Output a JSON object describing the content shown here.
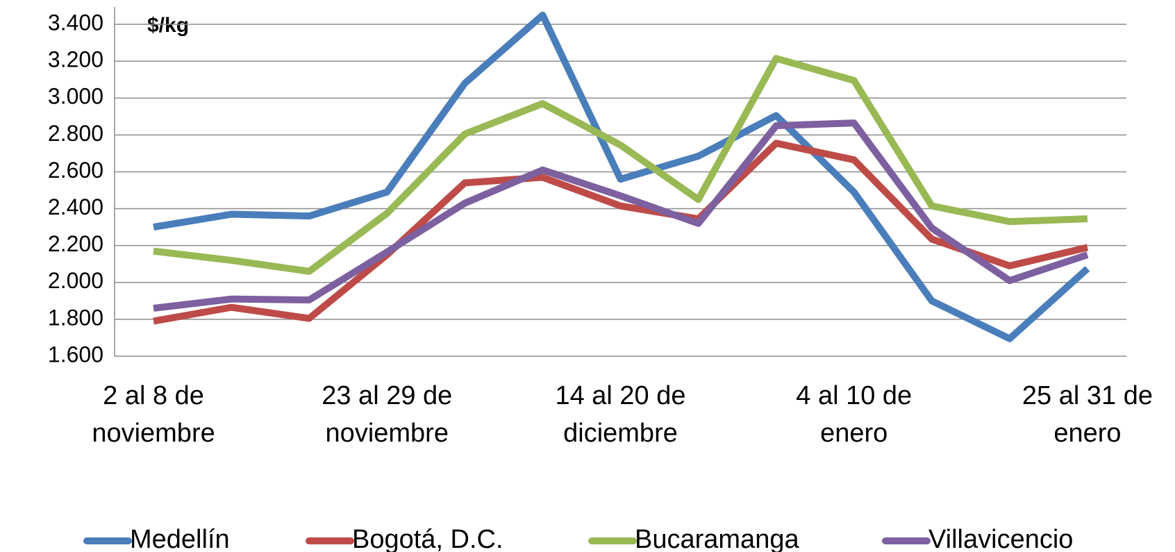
{
  "chart_data": {
    "type": "line",
    "annotation": "$/kg",
    "categories": [
      "2 al 8 de noviembre",
      null,
      null,
      "23 al 29 de noviembre",
      null,
      null,
      "14 al 20 de diciembre",
      null,
      null,
      "4 al 10 de enero",
      null,
      null,
      "25 al 31 de enero"
    ],
    "series": [
      {
        "name": "Medellín",
        "color": "#4a7ebb",
        "values": [
          2300,
          2370,
          2360,
          2490,
          3080,
          3450,
          2560,
          2685,
          2905,
          2490,
          1900,
          1695,
          2075
        ]
      },
      {
        "name": "Bogotá, D.C.",
        "color": "#be4b48",
        "values": [
          1790,
          1865,
          1805,
          2150,
          2540,
          2570,
          2415,
          2345,
          2755,
          2665,
          2235,
          2090,
          2190
        ]
      },
      {
        "name": "Bucaramanga",
        "color": "#98b954",
        "values": [
          2170,
          2120,
          2060,
          2375,
          2805,
          2970,
          2745,
          2450,
          3215,
          3095,
          2415,
          2330,
          2345
        ]
      },
      {
        "name": "Villavicencio",
        "color": "#7d60a0",
        "values": [
          1860,
          1910,
          1905,
          2165,
          2430,
          2610,
          2470,
          2320,
          2850,
          2865,
          2295,
          2010,
          2150
        ]
      }
    ],
    "ylim": [
      1600,
      3400
    ],
    "yticks": [
      {
        "value": 1600,
        "label": "1.600"
      },
      {
        "value": 1800,
        "label": "1.800"
      },
      {
        "value": 2000,
        "label": "2.000"
      },
      {
        "value": 2200,
        "label": "2.200"
      },
      {
        "value": 2400,
        "label": "2.400"
      },
      {
        "value": 2600,
        "label": "2.600"
      },
      {
        "value": 2800,
        "label": "2.800"
      },
      {
        "value": 3000,
        "label": "3.000"
      },
      {
        "value": 3200,
        "label": "3.200"
      },
      {
        "value": 3400,
        "label": "3.400"
      }
    ],
    "grid": true,
    "legend": "bottom"
  }
}
